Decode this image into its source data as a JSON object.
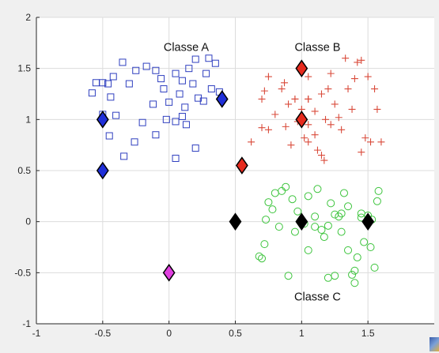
{
  "chart_data": {
    "type": "scatter",
    "title": "",
    "xlabel": "",
    "ylabel": "",
    "xlim": [
      -1,
      2
    ],
    "ylim": [
      -1,
      2
    ],
    "xticks": [
      -1,
      -0.5,
      0,
      0.5,
      1,
      1.5
    ],
    "xtick_labels": [
      "-1",
      "-0.5",
      "0",
      "0.5",
      "1",
      "1.5"
    ],
    "yticks": [
      -1,
      -0.5,
      0,
      0.5,
      1,
      1.5,
      2
    ],
    "ytick_labels": [
      "-1",
      "-0.5",
      "0",
      "0.5",
      "1",
      "1.5",
      "2"
    ],
    "grid": true,
    "annotations": [
      {
        "text": "Classe A",
        "x": 0.13,
        "y": 1.67
      },
      {
        "text": "Classe B",
        "x": 1.12,
        "y": 1.67
      },
      {
        "text": "Classe C",
        "x": 1.12,
        "y": -0.77
      }
    ],
    "series": [
      {
        "marker": "square",
        "color": "#2f3fbf",
        "points": [
          [
            -0.58,
            1.26
          ],
          [
            -0.5,
            1.05
          ],
          [
            -0.45,
            0.84
          ],
          [
            -0.44,
            1.22
          ],
          [
            -0.42,
            1.42
          ],
          [
            -0.35,
            1.56
          ],
          [
            -0.3,
            1.35
          ],
          [
            -0.26,
            0.78
          ],
          [
            -0.25,
            1.48
          ],
          [
            -0.2,
            0.97
          ],
          [
            -0.17,
            1.52
          ],
          [
            -0.12,
            1.15
          ],
          [
            -0.1,
            0.85
          ],
          [
            -0.06,
            1.4
          ],
          [
            -0.04,
            1.3
          ],
          [
            -0.02,
            1.0
          ],
          [
            0.0,
            1.17
          ],
          [
            0.05,
            1.45
          ],
          [
            0.05,
            0.98
          ],
          [
            0.08,
            1.25
          ],
          [
            0.1,
            1.38
          ],
          [
            0.1,
            1.03
          ],
          [
            0.13,
            0.95
          ],
          [
            0.15,
            1.5
          ],
          [
            0.18,
            1.35
          ],
          [
            0.2,
            1.59
          ],
          [
            0.22,
            1.21
          ],
          [
            0.26,
            1.18
          ],
          [
            0.28,
            1.45
          ],
          [
            0.3,
            1.6
          ],
          [
            0.32,
            1.3
          ],
          [
            0.35,
            1.55
          ],
          [
            0.05,
            0.62
          ],
          [
            -0.1,
            1.48
          ],
          [
            0.2,
            0.72
          ],
          [
            0.38,
            1.27
          ],
          [
            -0.34,
            0.64
          ],
          [
            -0.5,
            1.36
          ],
          [
            -0.55,
            1.36
          ],
          [
            -0.46,
            1.35
          ],
          [
            0.12,
            1.12
          ],
          [
            -0.4,
            1.04
          ]
        ]
      },
      {
        "marker": "plus",
        "color": "#d94a3a",
        "points": [
          [
            0.62,
            0.78
          ],
          [
            0.7,
            0.92
          ],
          [
            0.7,
            1.2
          ],
          [
            0.72,
            1.28
          ],
          [
            0.75,
            1.42
          ],
          [
            0.75,
            0.9
          ],
          [
            0.8,
            1.05
          ],
          [
            0.85,
            1.3
          ],
          [
            0.87,
            1.36
          ],
          [
            0.88,
            0.93
          ],
          [
            0.9,
            1.15
          ],
          [
            0.92,
            0.75
          ],
          [
            0.95,
            1.2
          ],
          [
            0.97,
            0.98
          ],
          [
            1.0,
            1.1
          ],
          [
            1.02,
            0.82
          ],
          [
            1.05,
            1.2
          ],
          [
            1.05,
            0.95
          ],
          [
            1.1,
            1.08
          ],
          [
            1.12,
            0.7
          ],
          [
            1.15,
            1.25
          ],
          [
            1.18,
            1.0
          ],
          [
            1.2,
            1.3
          ],
          [
            1.22,
            0.95
          ],
          [
            1.22,
            1.45
          ],
          [
            1.25,
            1.15
          ],
          [
            1.28,
            1.02
          ],
          [
            1.3,
            0.9
          ],
          [
            1.33,
            1.6
          ],
          [
            1.35,
            1.3
          ],
          [
            1.38,
            1.1
          ],
          [
            1.4,
            1.4
          ],
          [
            1.42,
            1.56
          ],
          [
            1.45,
            1.58
          ],
          [
            1.48,
            0.82
          ],
          [
            1.5,
            1.42
          ],
          [
            1.55,
            1.3
          ],
          [
            1.57,
            1.1
          ],
          [
            1.6,
            0.78
          ],
          [
            1.52,
            0.78
          ],
          [
            1.45,
            0.68
          ],
          [
            1.17,
            0.6
          ],
          [
            1.15,
            0.65
          ],
          [
            1.05,
            0.78
          ],
          [
            0.95,
            1.2
          ],
          [
            1.1,
            0.85
          ],
          [
            1.05,
            1.2
          ],
          [
            1.05,
            1.42
          ]
        ]
      },
      {
        "marker": "circle",
        "color": "#3cc43c",
        "points": [
          [
            0.68,
            -0.34
          ],
          [
            0.7,
            -0.36
          ],
          [
            0.72,
            -0.22
          ],
          [
            0.73,
            0.02
          ],
          [
            0.75,
            0.19
          ],
          [
            0.78,
            0.12
          ],
          [
            0.8,
            0.28
          ],
          [
            0.83,
            -0.05
          ],
          [
            0.85,
            0.3
          ],
          [
            0.88,
            0.34
          ],
          [
            0.9,
            -0.53
          ],
          [
            0.93,
            0.22
          ],
          [
            0.95,
            -0.1
          ],
          [
            0.97,
            0.1
          ],
          [
            1.02,
            -0.02
          ],
          [
            1.05,
            -0.28
          ],
          [
            1.05,
            0.25
          ],
          [
            1.1,
            0.05
          ],
          [
            1.12,
            0.32
          ],
          [
            1.15,
            -0.08
          ],
          [
            1.17,
            -0.15
          ],
          [
            1.2,
            -0.55
          ],
          [
            1.2,
            -0.04
          ],
          [
            1.22,
            0.18
          ],
          [
            1.25,
            0.07
          ],
          [
            1.25,
            -0.53
          ],
          [
            1.28,
            0.05
          ],
          [
            1.3,
            -0.1
          ],
          [
            1.32,
            0.28
          ],
          [
            1.35,
            0.15
          ],
          [
            1.35,
            -0.28
          ],
          [
            1.38,
            -0.52
          ],
          [
            1.4,
            -0.6
          ],
          [
            1.42,
            -0.35
          ],
          [
            1.45,
            0.08
          ],
          [
            1.47,
            -0.2
          ],
          [
            1.5,
            0.06
          ],
          [
            1.52,
            -0.25
          ],
          [
            1.53,
            0.02
          ],
          [
            1.55,
            -0.45
          ],
          [
            1.57,
            0.2
          ],
          [
            1.58,
            0.3
          ],
          [
            1.45,
            0.04
          ],
          [
            1.3,
            0.08
          ],
          [
            1.1,
            -0.05
          ],
          [
            1.4,
            -0.48
          ]
        ]
      },
      {
        "marker": "diamond",
        "color": "#1f2fd8",
        "points": [
          [
            -0.5,
            1.0
          ],
          [
            -0.5,
            0.5
          ],
          [
            0.4,
            1.2
          ]
        ]
      },
      {
        "marker": "diamond",
        "color": "#e62b1e",
        "points": [
          [
            0.55,
            0.55
          ],
          [
            1.0,
            1.0
          ],
          [
            1.0,
            1.5
          ]
        ]
      },
      {
        "marker": "diamond",
        "color": "#000000",
        "points": [
          [
            0.5,
            0.0
          ],
          [
            1.0,
            0.0
          ],
          [
            1.5,
            0.0
          ]
        ]
      },
      {
        "marker": "diamond",
        "color": "#e040e0",
        "points": [
          [
            0.0,
            -0.5
          ]
        ]
      }
    ]
  }
}
